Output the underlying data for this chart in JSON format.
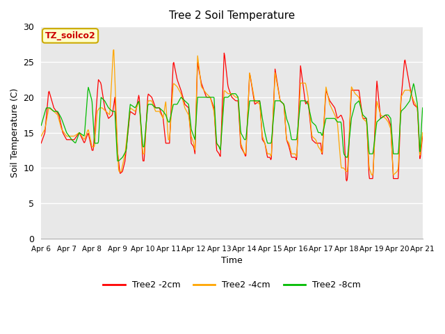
{
  "title": "Tree 2 Soil Temperature",
  "xlabel": "Time",
  "ylabel": "Soil Temperature (C)",
  "legend_label": "TZ_soilco2",
  "series_labels": [
    "Tree2 -2cm",
    "Tree2 -4cm",
    "Tree2 -8cm"
  ],
  "series_colors": [
    "#ff0000",
    "#ffa500",
    "#00bb00"
  ],
  "ylim": [
    0,
    30
  ],
  "yticks": [
    0,
    5,
    10,
    15,
    20,
    25,
    30
  ],
  "x_tick_labels": [
    "Apr 6",
    "Apr 7",
    "Apr 8",
    "Apr 9",
    "Apr 10",
    "Apr 11",
    "Apr 12",
    "Apr 13",
    "Apr 14",
    "Apr 15",
    "Apr 16",
    "Apr 17",
    "Apr 18",
    "Apr 19",
    "Apr 20",
    "Apr 21"
  ],
  "bg_color": "#e8e8e8",
  "fig_color": "#ffffff",
  "grid_color": "#ffffff",
  "annotation_bg": "#ffffcc",
  "annotation_border": "#ccaa00",
  "red_keypoints": [
    [
      0.0,
      13.5
    ],
    [
      0.15,
      15.0
    ],
    [
      0.3,
      21.0
    ],
    [
      0.5,
      18.5
    ],
    [
      0.6,
      18.0
    ],
    [
      0.7,
      17.5
    ],
    [
      0.85,
      15.0
    ],
    [
      1.0,
      14.0
    ],
    [
      1.1,
      14.0
    ],
    [
      1.3,
      14.0
    ],
    [
      1.5,
      15.0
    ],
    [
      1.7,
      13.5
    ],
    [
      1.85,
      15.0
    ],
    [
      2.0,
      12.5
    ],
    [
      2.05,
      12.5
    ],
    [
      2.15,
      17.5
    ],
    [
      2.25,
      22.5
    ],
    [
      2.35,
      22.0
    ],
    [
      2.5,
      18.5
    ],
    [
      2.65,
      17.0
    ],
    [
      2.8,
      17.5
    ],
    [
      2.9,
      20.0
    ],
    [
      3.0,
      12.5
    ],
    [
      3.1,
      9.2
    ],
    [
      3.2,
      9.5
    ],
    [
      3.3,
      11.0
    ],
    [
      3.5,
      18.0
    ],
    [
      3.7,
      17.5
    ],
    [
      3.85,
      20.5
    ],
    [
      4.0,
      11.0
    ],
    [
      4.05,
      11.0
    ],
    [
      4.2,
      20.5
    ],
    [
      4.35,
      20.0
    ],
    [
      4.5,
      18.5
    ],
    [
      4.65,
      18.5
    ],
    [
      4.8,
      17.0
    ],
    [
      4.9,
      13.5
    ],
    [
      5.0,
      13.5
    ],
    [
      5.05,
      13.5
    ],
    [
      5.2,
      25.2
    ],
    [
      5.35,
      22.5
    ],
    [
      5.5,
      21.0
    ],
    [
      5.65,
      19.0
    ],
    [
      5.8,
      18.5
    ],
    [
      5.9,
      13.5
    ],
    [
      6.0,
      13.0
    ],
    [
      6.05,
      12.0
    ],
    [
      6.15,
      25.0
    ],
    [
      6.3,
      22.0
    ],
    [
      6.5,
      20.0
    ],
    [
      6.65,
      20.0
    ],
    [
      6.8,
      18.5
    ],
    [
      6.9,
      12.5
    ],
    [
      7.0,
      12.0
    ],
    [
      7.05,
      11.5
    ],
    [
      7.2,
      26.5
    ],
    [
      7.35,
      21.5
    ],
    [
      7.5,
      20.0
    ],
    [
      7.65,
      19.5
    ],
    [
      7.75,
      19.5
    ],
    [
      7.85,
      13.0
    ],
    [
      8.0,
      12.0
    ],
    [
      8.05,
      11.5
    ],
    [
      8.2,
      23.5
    ],
    [
      8.4,
      19.0
    ],
    [
      8.6,
      19.5
    ],
    [
      8.7,
      14.0
    ],
    [
      8.8,
      13.5
    ],
    [
      8.9,
      11.5
    ],
    [
      9.0,
      11.5
    ],
    [
      9.05,
      11.0
    ],
    [
      9.2,
      24.0
    ],
    [
      9.4,
      19.5
    ],
    [
      9.55,
      19.0
    ],
    [
      9.65,
      14.0
    ],
    [
      9.75,
      13.0
    ],
    [
      9.85,
      11.5
    ],
    [
      10.0,
      11.5
    ],
    [
      10.05,
      11.0
    ],
    [
      10.2,
      24.5
    ],
    [
      10.4,
      19.0
    ],
    [
      10.5,
      19.5
    ],
    [
      10.65,
      14.0
    ],
    [
      10.8,
      13.5
    ],
    [
      10.9,
      13.5
    ],
    [
      11.0,
      13.5
    ],
    [
      11.05,
      11.5
    ],
    [
      11.2,
      21.0
    ],
    [
      11.35,
      19.5
    ],
    [
      11.55,
      18.5
    ],
    [
      11.65,
      17.0
    ],
    [
      11.8,
      17.5
    ],
    [
      11.9,
      16.5
    ],
    [
      12.0,
      8.0
    ],
    [
      12.05,
      8.5
    ],
    [
      12.2,
      21.0
    ],
    [
      12.35,
      21.0
    ],
    [
      12.5,
      21.0
    ],
    [
      12.65,
      17.0
    ],
    [
      12.8,
      17.0
    ],
    [
      12.9,
      8.5
    ],
    [
      13.0,
      8.5
    ],
    [
      13.05,
      8.5
    ],
    [
      13.2,
      22.5
    ],
    [
      13.35,
      17.0
    ],
    [
      13.55,
      17.5
    ],
    [
      13.65,
      17.0
    ],
    [
      13.75,
      16.0
    ],
    [
      13.85,
      8.5
    ],
    [
      14.0,
      8.5
    ],
    [
      14.05,
      8.5
    ],
    [
      14.15,
      19.5
    ],
    [
      14.3,
      25.5
    ],
    [
      14.5,
      21.5
    ],
    [
      14.65,
      19.0
    ],
    [
      14.8,
      18.5
    ],
    [
      14.9,
      11.0
    ],
    [
      15.0,
      14.5
    ]
  ],
  "orange_keypoints": [
    [
      0.0,
      14.5
    ],
    [
      0.15,
      15.5
    ],
    [
      0.3,
      18.5
    ],
    [
      0.5,
      18.0
    ],
    [
      0.65,
      17.5
    ],
    [
      0.8,
      15.5
    ],
    [
      1.0,
      14.5
    ],
    [
      1.1,
      14.5
    ],
    [
      1.3,
      14.5
    ],
    [
      1.5,
      15.0
    ],
    [
      1.7,
      14.0
    ],
    [
      1.85,
      15.5
    ],
    [
      2.0,
      13.0
    ],
    [
      2.1,
      13.0
    ],
    [
      2.2,
      18.0
    ],
    [
      2.3,
      18.5
    ],
    [
      2.4,
      18.5
    ],
    [
      2.55,
      18.0
    ],
    [
      2.7,
      17.5
    ],
    [
      2.85,
      27.5
    ],
    [
      3.0,
      13.0
    ],
    [
      3.05,
      9.5
    ],
    [
      3.15,
      9.5
    ],
    [
      3.3,
      12.0
    ],
    [
      3.5,
      18.5
    ],
    [
      3.7,
      18.0
    ],
    [
      3.85,
      19.5
    ],
    [
      4.0,
      12.0
    ],
    [
      4.05,
      12.0
    ],
    [
      4.2,
      19.5
    ],
    [
      4.35,
      19.5
    ],
    [
      4.5,
      18.0
    ],
    [
      4.65,
      18.0
    ],
    [
      4.8,
      17.0
    ],
    [
      4.9,
      19.5
    ],
    [
      5.0,
      14.0
    ],
    [
      5.05,
      14.0
    ],
    [
      5.2,
      22.0
    ],
    [
      5.35,
      21.5
    ],
    [
      5.5,
      20.5
    ],
    [
      5.65,
      18.5
    ],
    [
      5.8,
      17.5
    ],
    [
      5.9,
      14.5
    ],
    [
      6.0,
      13.5
    ],
    [
      6.05,
      12.5
    ],
    [
      6.15,
      26.0
    ],
    [
      6.3,
      21.5
    ],
    [
      6.5,
      20.5
    ],
    [
      6.65,
      20.0
    ],
    [
      6.8,
      18.0
    ],
    [
      6.9,
      13.5
    ],
    [
      7.0,
      13.0
    ],
    [
      7.05,
      12.5
    ],
    [
      7.2,
      21.0
    ],
    [
      7.35,
      20.5
    ],
    [
      7.5,
      20.5
    ],
    [
      7.65,
      20.0
    ],
    [
      7.75,
      20.0
    ],
    [
      7.85,
      13.5
    ],
    [
      8.0,
      12.0
    ],
    [
      8.05,
      12.0
    ],
    [
      8.2,
      23.5
    ],
    [
      8.4,
      19.5
    ],
    [
      8.6,
      19.0
    ],
    [
      8.7,
      14.5
    ],
    [
      8.8,
      13.5
    ],
    [
      8.9,
      12.0
    ],
    [
      9.0,
      12.0
    ],
    [
      9.05,
      11.5
    ],
    [
      9.2,
      23.5
    ],
    [
      9.4,
      19.5
    ],
    [
      9.55,
      19.0
    ],
    [
      9.65,
      14.0
    ],
    [
      9.75,
      13.5
    ],
    [
      9.85,
      12.0
    ],
    [
      10.0,
      12.0
    ],
    [
      10.05,
      11.5
    ],
    [
      10.2,
      22.0
    ],
    [
      10.4,
      22.0
    ],
    [
      10.5,
      20.0
    ],
    [
      10.65,
      14.5
    ],
    [
      10.8,
      14.0
    ],
    [
      10.9,
      13.0
    ],
    [
      11.0,
      12.5
    ],
    [
      11.05,
      12.0
    ],
    [
      11.2,
      21.5
    ],
    [
      11.35,
      19.0
    ],
    [
      11.55,
      17.5
    ],
    [
      11.65,
      16.5
    ],
    [
      11.8,
      10.0
    ],
    [
      11.9,
      10.0
    ],
    [
      12.0,
      9.5
    ],
    [
      12.05,
      9.5
    ],
    [
      12.2,
      21.5
    ],
    [
      12.35,
      20.5
    ],
    [
      12.5,
      20.0
    ],
    [
      12.65,
      17.0
    ],
    [
      12.8,
      16.5
    ],
    [
      12.9,
      10.0
    ],
    [
      13.0,
      9.0
    ],
    [
      13.05,
      9.0
    ],
    [
      13.2,
      19.5
    ],
    [
      13.35,
      17.5
    ],
    [
      13.55,
      17.0
    ],
    [
      13.65,
      16.5
    ],
    [
      13.75,
      15.5
    ],
    [
      13.85,
      9.0
    ],
    [
      14.0,
      9.5
    ],
    [
      14.05,
      10.0
    ],
    [
      14.15,
      20.0
    ],
    [
      14.3,
      21.0
    ],
    [
      14.5,
      21.0
    ],
    [
      14.65,
      19.5
    ],
    [
      14.8,
      18.5
    ],
    [
      14.9,
      11.5
    ],
    [
      15.0,
      15.0
    ]
  ],
  "green_keypoints": [
    [
      0.0,
      16.0
    ],
    [
      0.2,
      18.5
    ],
    [
      0.35,
      18.5
    ],
    [
      0.5,
      18.0
    ],
    [
      0.65,
      18.0
    ],
    [
      0.8,
      17.0
    ],
    [
      1.0,
      15.0
    ],
    [
      1.1,
      14.5
    ],
    [
      1.2,
      14.0
    ],
    [
      1.35,
      13.5
    ],
    [
      1.5,
      15.0
    ],
    [
      1.7,
      14.5
    ],
    [
      1.85,
      21.5
    ],
    [
      2.0,
      19.5
    ],
    [
      2.1,
      13.5
    ],
    [
      2.25,
      13.5
    ],
    [
      2.35,
      20.0
    ],
    [
      2.5,
      19.5
    ],
    [
      2.65,
      18.5
    ],
    [
      2.8,
      18.0
    ],
    [
      2.9,
      18.0
    ],
    [
      3.0,
      11.0
    ],
    [
      3.05,
      11.0
    ],
    [
      3.2,
      11.5
    ],
    [
      3.35,
      12.5
    ],
    [
      3.5,
      19.0
    ],
    [
      3.7,
      18.5
    ],
    [
      3.85,
      19.5
    ],
    [
      4.0,
      13.0
    ],
    [
      4.05,
      13.0
    ],
    [
      4.2,
      19.0
    ],
    [
      4.35,
      19.0
    ],
    [
      4.5,
      18.5
    ],
    [
      4.65,
      18.5
    ],
    [
      4.8,
      18.0
    ],
    [
      4.9,
      17.5
    ],
    [
      5.0,
      16.5
    ],
    [
      5.05,
      16.5
    ],
    [
      5.2,
      19.0
    ],
    [
      5.35,
      19.0
    ],
    [
      5.5,
      20.0
    ],
    [
      5.65,
      19.5
    ],
    [
      5.8,
      19.0
    ],
    [
      5.9,
      15.5
    ],
    [
      6.0,
      14.5
    ],
    [
      6.05,
      14.0
    ],
    [
      6.15,
      20.0
    ],
    [
      6.3,
      20.0
    ],
    [
      6.5,
      20.0
    ],
    [
      6.65,
      20.0
    ],
    [
      6.8,
      20.0
    ],
    [
      6.9,
      13.5
    ],
    [
      7.0,
      13.0
    ],
    [
      7.05,
      12.5
    ],
    [
      7.2,
      20.0
    ],
    [
      7.35,
      20.0
    ],
    [
      7.5,
      20.5
    ],
    [
      7.65,
      20.5
    ],
    [
      7.75,
      20.0
    ],
    [
      7.85,
      15.0
    ],
    [
      8.0,
      14.0
    ],
    [
      8.05,
      14.0
    ],
    [
      8.2,
      19.5
    ],
    [
      8.4,
      19.5
    ],
    [
      8.6,
      19.5
    ],
    [
      8.7,
      17.0
    ],
    [
      8.8,
      15.0
    ],
    [
      8.9,
      13.5
    ],
    [
      9.0,
      13.5
    ],
    [
      9.05,
      13.5
    ],
    [
      9.2,
      19.5
    ],
    [
      9.4,
      19.5
    ],
    [
      9.55,
      19.0
    ],
    [
      9.65,
      17.0
    ],
    [
      9.75,
      16.0
    ],
    [
      9.85,
      14.0
    ],
    [
      10.0,
      14.0
    ],
    [
      10.05,
      14.0
    ],
    [
      10.2,
      19.5
    ],
    [
      10.4,
      19.5
    ],
    [
      10.5,
      19.0
    ],
    [
      10.65,
      16.5
    ],
    [
      10.8,
      16.0
    ],
    [
      10.9,
      15.0
    ],
    [
      11.0,
      15.0
    ],
    [
      11.05,
      14.5
    ],
    [
      11.2,
      17.0
    ],
    [
      11.35,
      17.0
    ],
    [
      11.55,
      17.0
    ],
    [
      11.65,
      16.5
    ],
    [
      11.8,
      16.5
    ],
    [
      11.9,
      12.0
    ],
    [
      12.0,
      11.5
    ],
    [
      12.05,
      11.5
    ],
    [
      12.2,
      17.0
    ],
    [
      12.35,
      19.0
    ],
    [
      12.5,
      19.5
    ],
    [
      12.65,
      17.5
    ],
    [
      12.8,
      17.0
    ],
    [
      12.9,
      12.0
    ],
    [
      13.0,
      12.0
    ],
    [
      13.05,
      12.0
    ],
    [
      13.2,
      16.5
    ],
    [
      13.35,
      17.0
    ],
    [
      13.55,
      17.5
    ],
    [
      13.65,
      17.5
    ],
    [
      13.75,
      17.0
    ],
    [
      13.85,
      12.0
    ],
    [
      14.0,
      12.0
    ],
    [
      14.05,
      12.0
    ],
    [
      14.15,
      18.0
    ],
    [
      14.3,
      18.5
    ],
    [
      14.5,
      19.5
    ],
    [
      14.65,
      22.0
    ],
    [
      14.8,
      19.0
    ],
    [
      14.9,
      12.0
    ],
    [
      15.0,
      18.5
    ]
  ]
}
